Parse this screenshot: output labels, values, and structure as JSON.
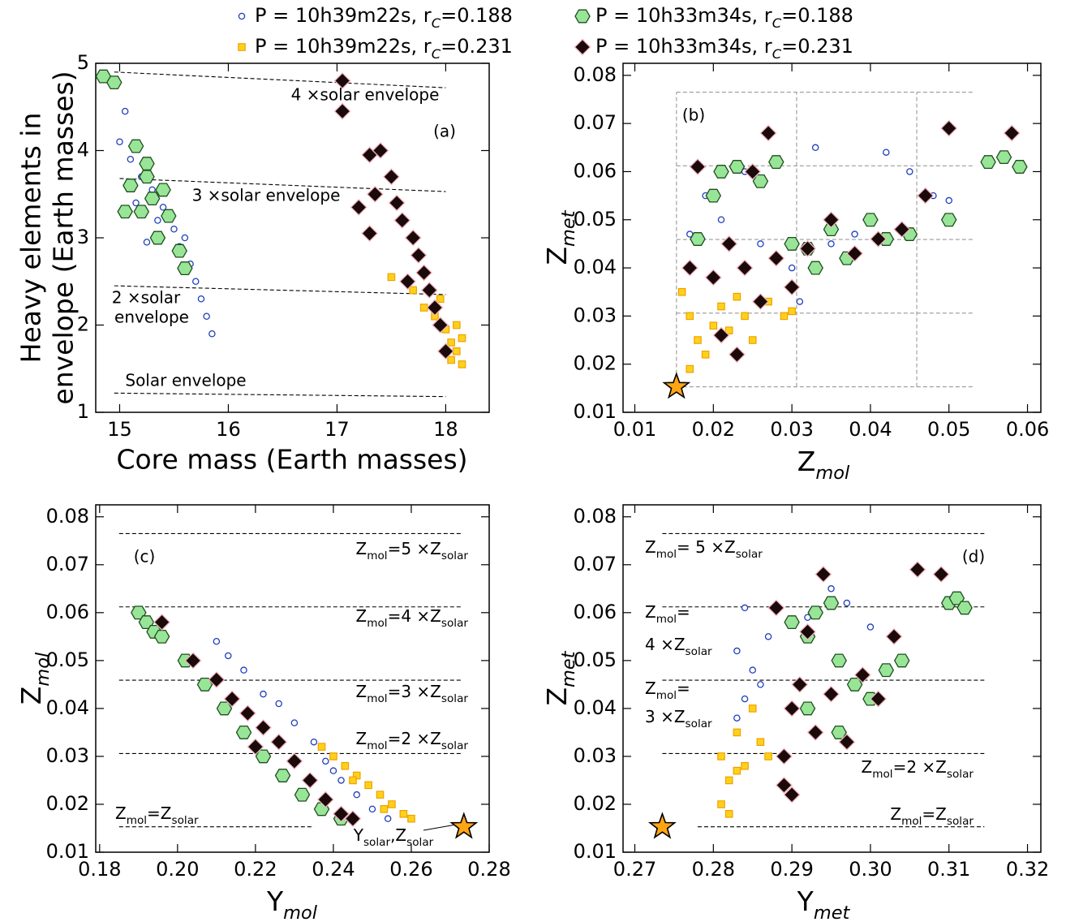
{
  "chart_data": [
    {
      "type": "scatter",
      "xlabel": "Core mass (Earth masses)",
      "ylabel": [
        "Heavy elements in",
        "envelope (Earth masses)"
      ],
      "xlim": [
        14.78,
        18.4
      ],
      "ylim": [
        1,
        5
      ],
      "xticks": [
        15,
        16,
        17,
        18
      ],
      "yticks": [
        1,
        2,
        3,
        4,
        5
      ],
      "annotations": [
        "4 ×solar envelope",
        "3 ×solar envelope",
        "2 ×solar",
        "envelope",
        "Solar envelope",
        "(a)"
      ],
      "lines": [
        {
          "x": [
            14.95,
            18
          ],
          "y": [
            4.9,
            4.72
          ],
          "color": "#000"
        },
        {
          "x": [
            15.0,
            18
          ],
          "y": [
            3.68,
            3.53
          ],
          "color": "#000"
        },
        {
          "x": [
            14.95,
            18
          ],
          "y": [
            2.45,
            2.35
          ],
          "color": "#000"
        },
        {
          "x": [
            14.95,
            18
          ],
          "y": [
            1.22,
            1.18
          ],
          "color": "#000"
        }
      ],
      "series": [
        {
          "name": [
            "P = 10h39m22s, r",
            "C",
            "=0.188"
          ],
          "marker": "circle",
          "color": "#ffffff",
          "edgecolor": "#1f3fbf",
          "x": [
            14.85,
            15.05,
            15.0,
            15.1,
            15.2,
            15.3,
            15.4,
            15.5,
            15.55,
            15.65,
            15.7,
            15.75,
            15.8,
            15.85,
            15.6,
            15.35,
            15.25,
            15.15
          ],
          "y": [
            4.85,
            4.45,
            4.1,
            3.9,
            3.7,
            3.55,
            3.35,
            3.1,
            2.9,
            2.7,
            2.5,
            2.3,
            2.1,
            1.9,
            3.0,
            3.2,
            2.95,
            3.4
          ]
        },
        {
          "name": [
            "P = 10h39m22s, r",
            "C",
            "=0.231"
          ],
          "marker": "square",
          "color": "#ffd21a",
          "edgecolor": "#f0a000",
          "x": [
            17.5,
            17.7,
            17.8,
            17.9,
            18.0,
            18.05,
            18.1,
            18.15,
            17.95,
            18.1,
            18.15,
            18.05
          ],
          "y": [
            2.55,
            2.4,
            2.2,
            2.1,
            1.95,
            1.8,
            1.7,
            1.85,
            2.3,
            2.0,
            1.55,
            1.6
          ]
        },
        {
          "name": [
            "P = 10h33m34s, r",
            "C",
            "=0.188"
          ],
          "marker": "hexagon",
          "color": "#98e598",
          "edgecolor": "#1d4d1d",
          "x": [
            14.85,
            14.95,
            15.15,
            15.25,
            15.1,
            15.3,
            15.2,
            15.45,
            15.35,
            15.55,
            15.6,
            15.25,
            15.05,
            15.4
          ],
          "y": [
            4.85,
            4.78,
            4.05,
            3.85,
            3.6,
            3.45,
            3.3,
            3.25,
            3.0,
            2.85,
            2.65,
            3.7,
            3.3,
            3.55
          ]
        },
        {
          "name": [
            "P = 10h33m34s, r",
            "C",
            "=0.231"
          ],
          "marker": "diamond",
          "color": "#1a0a0a",
          "edgecolor": "#f2b3bf",
          "x": [
            17.05,
            17.05,
            17.3,
            17.4,
            17.5,
            17.55,
            17.6,
            17.7,
            17.75,
            17.8,
            17.85,
            17.9,
            17.95,
            18.0,
            17.2,
            17.3,
            17.35,
            17.65
          ],
          "y": [
            4.8,
            4.45,
            3.95,
            4.0,
            3.7,
            3.4,
            3.2,
            3.0,
            2.8,
            2.6,
            2.4,
            2.2,
            2.0,
            1.7,
            3.35,
            3.05,
            3.5,
            2.5
          ]
        }
      ]
    },
    {
      "type": "scatter",
      "xlabel": [
        "Z",
        "mol"
      ],
      "ylabel": [
        "Z",
        "met"
      ],
      "xlim": [
        0.0085,
        0.0617
      ],
      "ylim": [
        0.01,
        0.0825
      ],
      "xticks": [
        0.01,
        0.02,
        0.03,
        0.04,
        0.05,
        0.06
      ],
      "yticks": [
        0.01,
        0.02,
        0.03,
        0.04,
        0.05,
        0.06,
        0.07,
        0.08
      ],
      "annotations": [
        "(b)"
      ],
      "lines": [
        {
          "x": [
            0.0153,
            0.053
          ],
          "y": [
            0.0153,
            0.0153
          ],
          "color": "#999"
        },
        {
          "x": [
            0.0153,
            0.053
          ],
          "y": [
            0.0306,
            0.0306
          ],
          "color": "#999"
        },
        {
          "x": [
            0.0153,
            0.053
          ],
          "y": [
            0.0459,
            0.0459
          ],
          "color": "#999"
        },
        {
          "x": [
            0.0153,
            0.053
          ],
          "y": [
            0.0612,
            0.0612
          ],
          "color": "#999"
        },
        {
          "x": [
            0.0153,
            0.053
          ],
          "y": [
            0.0765,
            0.0765
          ],
          "color": "#999"
        },
        {
          "x": [
            0.0153,
            0.0153
          ],
          "y": [
            0.0153,
            0.0765
          ],
          "color": "#999"
        },
        {
          "x": [
            0.0306,
            0.0306
          ],
          "y": [
            0.0153,
            0.0765
          ],
          "color": "#999"
        },
        {
          "x": [
            0.0459,
            0.0459
          ],
          "y": [
            0.0153,
            0.0765
          ],
          "color": "#999"
        }
      ],
      "star": {
        "x": 0.0153,
        "y": 0.0153,
        "color": "#ffa514"
      },
      "series": [
        {
          "marker": "circle",
          "color": "#ffffff",
          "edgecolor": "#1f3fbf",
          "x": [
            0.017,
            0.019,
            0.021,
            0.024,
            0.026,
            0.03,
            0.033,
            0.035,
            0.038,
            0.04,
            0.042,
            0.045,
            0.048,
            0.05,
            0.031
          ],
          "y": [
            0.047,
            0.055,
            0.05,
            0.06,
            0.045,
            0.04,
            0.065,
            0.045,
            0.047,
            0.05,
            0.064,
            0.06,
            0.055,
            0.054,
            0.033
          ]
        },
        {
          "marker": "square",
          "color": "#ffd21a",
          "edgecolor": "#f0a000",
          "x": [
            0.016,
            0.017,
            0.018,
            0.019,
            0.02,
            0.021,
            0.022,
            0.024,
            0.025,
            0.027,
            0.029,
            0.03,
            0.017,
            0.023
          ],
          "y": [
            0.035,
            0.03,
            0.025,
            0.022,
            0.028,
            0.032,
            0.027,
            0.03,
            0.025,
            0.033,
            0.03,
            0.031,
            0.019,
            0.034
          ]
        },
        {
          "marker": "hexagon",
          "color": "#98e598",
          "edgecolor": "#1d4d1d",
          "x": [
            0.018,
            0.02,
            0.021,
            0.023,
            0.026,
            0.028,
            0.03,
            0.033,
            0.035,
            0.037,
            0.04,
            0.042,
            0.045,
            0.05,
            0.055,
            0.057,
            0.059,
            0.032
          ],
          "y": [
            0.046,
            0.055,
            0.06,
            0.061,
            0.058,
            0.062,
            0.045,
            0.04,
            0.048,
            0.042,
            0.05,
            0.046,
            0.047,
            0.05,
            0.062,
            0.063,
            0.061,
            0.044
          ]
        },
        {
          "marker": "diamond",
          "color": "#1a0a0a",
          "edgecolor": "#f2b3bf",
          "x": [
            0.017,
            0.018,
            0.02,
            0.022,
            0.024,
            0.025,
            0.027,
            0.028,
            0.03,
            0.032,
            0.035,
            0.038,
            0.041,
            0.044,
            0.047,
            0.05,
            0.058,
            0.023,
            0.021,
            0.026
          ],
          "y": [
            0.04,
            0.061,
            0.038,
            0.045,
            0.04,
            0.06,
            0.068,
            0.042,
            0.036,
            0.044,
            0.05,
            0.043,
            0.046,
            0.048,
            0.055,
            0.069,
            0.068,
            0.022,
            0.026,
            0.033
          ]
        }
      ]
    },
    {
      "type": "scatter",
      "xlabel": [
        "Y",
        "mol"
      ],
      "ylabel": [
        "Z",
        "mol"
      ],
      "xlim": [
        0.179,
        0.28
      ],
      "ylim": [
        0.01,
        0.0825
      ],
      "xticks": [
        0.18,
        {
          "value": 0.2,
          "label": "0.20"
        },
        0.22,
        0.24,
        0.26,
        0.28
      ],
      "yticks": [
        0.01,
        0.02,
        0.03,
        0.04,
        0.05,
        0.06,
        0.07,
        0.08
      ],
      "annotations": [
        "(c)",
        [
          "Z",
          "mol",
          "=5 ×Z",
          "solar"
        ],
        [
          "Z",
          "mol",
          "=4 ×Z",
          "solar"
        ],
        [
          "Z",
          "mol",
          "=3 ×Z",
          "solar"
        ],
        [
          "Z",
          "mol",
          "=2 ×Z",
          "solar"
        ],
        [
          "Z",
          "mol",
          "=Z",
          "solar"
        ],
        [
          "Y",
          "solar",
          ",Z",
          "solar"
        ]
      ],
      "lines": [
        {
          "x": [
            0.185,
            0.235
          ],
          "y": [
            0.0153,
            0.0153
          ],
          "color": "#000"
        },
        {
          "x": [
            0.185,
            0.273
          ],
          "y": [
            0.0306,
            0.0306
          ],
          "color": "#000"
        },
        {
          "x": [
            0.185,
            0.273
          ],
          "y": [
            0.0459,
            0.0459
          ],
          "color": "#000"
        },
        {
          "x": [
            0.185,
            0.273
          ],
          "y": [
            0.0612,
            0.0612
          ],
          "color": "#000"
        },
        {
          "x": [
            0.185,
            0.273
          ],
          "y": [
            0.0765,
            0.0765
          ],
          "color": "#000"
        }
      ],
      "star": {
        "x": 0.2735,
        "y": 0.0153,
        "color": "#ffa514"
      },
      "series": [
        {
          "marker": "circle",
          "color": "#ffffff",
          "edgecolor": "#1f3fbf",
          "x": [
            0.21,
            0.213,
            0.217,
            0.222,
            0.226,
            0.23,
            0.235,
            0.238,
            0.242,
            0.246,
            0.25,
            0.254,
            0.24
          ],
          "y": [
            0.054,
            0.051,
            0.048,
            0.043,
            0.041,
            0.037,
            0.033,
            0.029,
            0.025,
            0.022,
            0.019,
            0.017,
            0.027
          ]
        },
        {
          "marker": "square",
          "color": "#ffd21a",
          "edgecolor": "#f0a000",
          "x": [
            0.237,
            0.24,
            0.243,
            0.246,
            0.249,
            0.252,
            0.255,
            0.258,
            0.26,
            0.245,
            0.253
          ],
          "y": [
            0.032,
            0.03,
            0.028,
            0.026,
            0.024,
            0.022,
            0.02,
            0.018,
            0.017,
            0.025,
            0.019
          ]
        },
        {
          "marker": "hexagon",
          "color": "#98e598",
          "edgecolor": "#1d4d1d",
          "x": [
            0.19,
            0.192,
            0.194,
            0.196,
            0.202,
            0.207,
            0.212,
            0.217,
            0.222,
            0.227,
            0.232,
            0.237,
            0.242
          ],
          "y": [
            0.06,
            0.058,
            0.056,
            0.055,
            0.05,
            0.045,
            0.04,
            0.035,
            0.03,
            0.026,
            0.022,
            0.019,
            0.017
          ]
        },
        {
          "marker": "diamond",
          "color": "#1a0a0a",
          "edgecolor": "#f2b3bf",
          "x": [
            0.196,
            0.204,
            0.21,
            0.214,
            0.218,
            0.222,
            0.226,
            0.23,
            0.234,
            0.238,
            0.242,
            0.245,
            0.22
          ],
          "y": [
            0.058,
            0.05,
            0.046,
            0.042,
            0.039,
            0.036,
            0.033,
            0.029,
            0.025,
            0.021,
            0.018,
            0.017,
            0.032
          ]
        }
      ]
    },
    {
      "type": "scatter",
      "xlabel": [
        "Y",
        "met"
      ],
      "ylabel": [
        "Z",
        "met"
      ],
      "xlim": [
        0.2685,
        0.3217
      ],
      "ylim": [
        0.01,
        0.0825
      ],
      "xticks": [
        0.27,
        0.28,
        0.29,
        {
          "value": 0.3,
          "label": "0.30"
        },
        0.31,
        0.32
      ],
      "yticks": [
        0.01,
        0.02,
        0.03,
        0.04,
        0.05,
        0.06,
        0.07,
        0.08
      ],
      "annotations": [
        "(d)",
        [
          "Z",
          "mol",
          "= 5 ×Z",
          "solar"
        ],
        [
          "Z",
          "mol",
          "="
        ],
        [
          "4 ×Z",
          "solar"
        ],
        [
          "Z",
          "mol",
          "="
        ],
        [
          "3 ×Z",
          "solar"
        ],
        [
          "Z",
          "mol",
          "=2 ×Z",
          "solar"
        ],
        [
          "Z",
          "mol",
          "=Z",
          "solar"
        ]
      ],
      "lines": [
        {
          "x": [
            0.278,
            0.3145
          ],
          "y": [
            0.0153,
            0.0153
          ],
          "color": "#000"
        },
        {
          "x": [
            0.2735,
            0.3145
          ],
          "y": [
            0.0306,
            0.0306
          ],
          "color": "#000"
        },
        {
          "x": [
            0.2735,
            0.3145
          ],
          "y": [
            0.0459,
            0.0459
          ],
          "color": "#000"
        },
        {
          "x": [
            0.2735,
            0.3145
          ],
          "y": [
            0.0612,
            0.0612
          ],
          "color": "#000"
        },
        {
          "x": [
            0.2735,
            0.3145
          ],
          "y": [
            0.0765,
            0.0765
          ],
          "color": "#000"
        }
      ],
      "star": {
        "x": 0.2735,
        "y": 0.0153,
        "color": "#ffa514"
      },
      "series": [
        {
          "marker": "circle",
          "color": "#ffffff",
          "edgecolor": "#1f3fbf",
          "x": [
            0.283,
            0.284,
            0.285,
            0.286,
            0.287,
            0.29,
            0.292,
            0.295,
            0.297,
            0.3,
            0.284,
            0.283
          ],
          "y": [
            0.052,
            0.061,
            0.048,
            0.045,
            0.055,
            0.058,
            0.059,
            0.065,
            0.062,
            0.057,
            0.042,
            0.038
          ]
        },
        {
          "marker": "square",
          "color": "#ffd21a",
          "edgecolor": "#f0a000",
          "x": [
            0.281,
            0.281,
            0.282,
            0.283,
            0.284,
            0.285,
            0.286,
            0.287,
            0.283,
            0.282
          ],
          "y": [
            0.03,
            0.02,
            0.025,
            0.035,
            0.028,
            0.04,
            0.033,
            0.03,
            0.027,
            0.018
          ]
        },
        {
          "marker": "hexagon",
          "color": "#98e598",
          "edgecolor": "#1d4d1d",
          "x": [
            0.29,
            0.292,
            0.293,
            0.295,
            0.296,
            0.298,
            0.3,
            0.302,
            0.304,
            0.31,
            0.311,
            0.312,
            0.292,
            0.296
          ],
          "y": [
            0.058,
            0.055,
            0.06,
            0.062,
            0.05,
            0.045,
            0.042,
            0.048,
            0.05,
            0.062,
            0.063,
            0.061,
            0.04,
            0.035
          ]
        },
        {
          "marker": "diamond",
          "color": "#1a0a0a",
          "edgecolor": "#f2b3bf",
          "x": [
            0.288,
            0.289,
            0.29,
            0.29,
            0.291,
            0.293,
            0.294,
            0.295,
            0.297,
            0.299,
            0.301,
            0.303,
            0.306,
            0.309,
            0.292,
            0.289
          ],
          "y": [
            0.061,
            0.024,
            0.022,
            0.04,
            0.045,
            0.035,
            0.068,
            0.043,
            0.033,
            0.047,
            0.042,
            0.055,
            0.069,
            0.068,
            0.056,
            0.03
          ]
        }
      ]
    }
  ]
}
